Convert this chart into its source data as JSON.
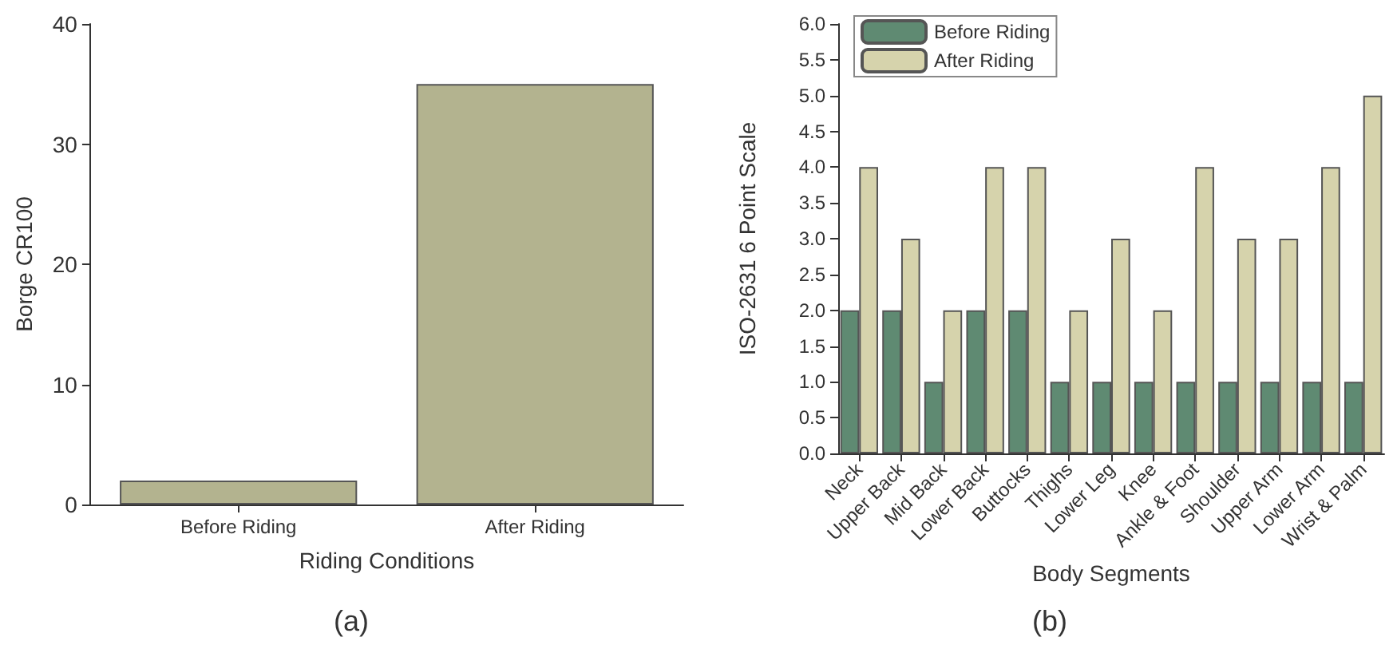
{
  "chart_data": [
    {
      "type": "bar",
      "categories": [
        "Before Riding",
        "After Riding"
      ],
      "values": [
        2,
        35
      ],
      "color": "#b3b38f",
      "xlabel": "Riding Conditions",
      "ylabel": "Borge CR100",
      "ylim": [
        0,
        40
      ],
      "yticks": [
        0,
        10,
        20,
        30,
        40
      ],
      "grid": false,
      "annotations": [
        "(a)"
      ]
    },
    {
      "type": "bar",
      "categories": [
        "Neck",
        "Upper Back",
        "Mid Back",
        "Lower Back",
        "Buttocks",
        "Thighs",
        "Lower Leg",
        "Knee",
        "Ankle & Foot",
        "Shoulder",
        "Upper Arm",
        "Lower Arm",
        "Wrist & Palm"
      ],
      "series": [
        {
          "name": "Before Riding",
          "color": "#5f8a72",
          "values": [
            2,
            2,
            1,
            2,
            2,
            1,
            1,
            1,
            1,
            1,
            1,
            1,
            1
          ]
        },
        {
          "name": "After Riding",
          "color": "#d6d3ac",
          "values": [
            4,
            3,
            2,
            4,
            4,
            2,
            3,
            2,
            4,
            3,
            3,
            4,
            5
          ]
        }
      ],
      "xlabel": "Body Segments",
      "ylabel": "ISO-2631 6 Point Scale",
      "ylim": [
        0,
        6
      ],
      "yticks": [
        {
          "value": 0,
          "label": "0.0"
        },
        {
          "value": 0.5,
          "label": "0.5"
        },
        {
          "value": 1,
          "label": "1.0"
        },
        {
          "value": 1.5,
          "label": "1.5"
        },
        {
          "value": 2,
          "label": "2.0"
        },
        {
          "value": 2.5,
          "label": "2.5"
        },
        {
          "value": 3,
          "label": "3.0"
        },
        {
          "value": 3.5,
          "label": "3.5"
        },
        {
          "value": 4,
          "label": "4.0"
        },
        {
          "value": 4.5,
          "label": "4.5"
        },
        {
          "value": 5,
          "label": "5.0"
        },
        {
          "value": 5.5,
          "label": "5.5"
        },
        {
          "value": 6,
          "label": "6.0"
        }
      ],
      "grid": false,
      "legend": "top left",
      "annotations": [
        "(b)"
      ]
    }
  ]
}
